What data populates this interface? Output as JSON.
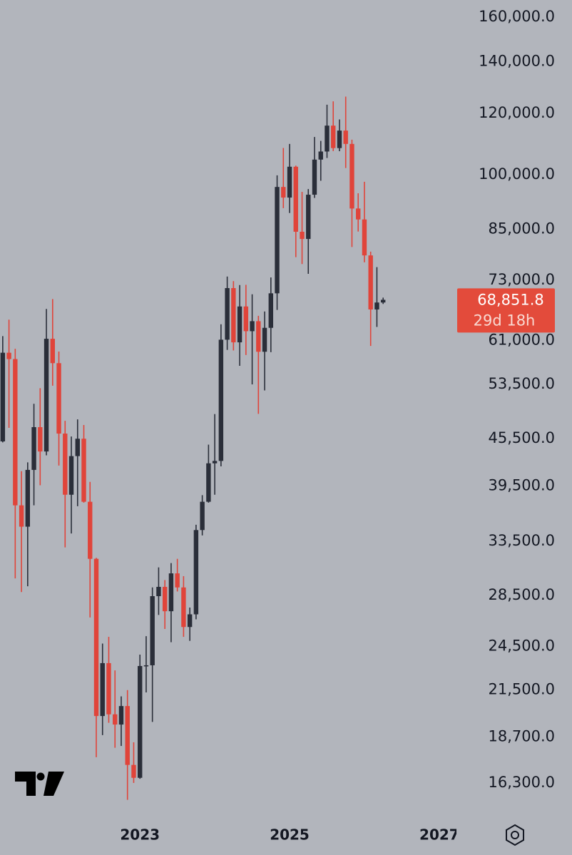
{
  "chart_data": {
    "type": "candlestick",
    "log_scale": true,
    "up_color": "#2a2e39",
    "down_color": "#e0443a",
    "x": [
      2021.1667,
      2021.25,
      2021.3333,
      2021.4167,
      2021.5,
      2021.5833,
      2021.6667,
      2021.75,
      2021.8333,
      2021.9167,
      2022,
      2022.0833,
      2022.1667,
      2022.25,
      2022.3333,
      2022.4167,
      2022.5,
      2022.5833,
      2022.6667,
      2022.75,
      2022.8333,
      2022.9167,
      2023,
      2023.0833,
      2023.1667,
      2023.25,
      2023.3333,
      2023.4167,
      2023.5,
      2023.5833,
      2023.6667,
      2023.75,
      2023.8333,
      2023.9167,
      2024,
      2024.0833,
      2024.1667,
      2024.25,
      2024.3333,
      2024.4167,
      2024.5,
      2024.5833,
      2024.6667,
      2024.75,
      2024.8333,
      2024.9167,
      2025,
      2025.0833,
      2025.1667,
      2025.25,
      2025.3333,
      2025.4167,
      2025.5,
      2025.5833,
      2025.6667,
      2025.75,
      2025.8333,
      2025.9167,
      2026,
      2026.0833,
      2026.1667,
      2026.25
    ],
    "open": [
      45135,
      58800,
      57700,
      37300,
      35000,
      41460,
      47100,
      43800,
      61300,
      57000,
      46200,
      38500,
      43200,
      45500,
      37700,
      31800,
      19900,
      23300,
      20000,
      19400,
      20500,
      17200,
      16550,
      23100,
      23150,
      28450,
      29250,
      27200,
      30450,
      29200,
      25950,
      26950,
      34650,
      37700,
      42280,
      42580,
      61130,
      71300,
      60650,
      67500,
      62700,
      64600,
      58970,
      63330,
      70200,
      96400,
      93400,
      102400,
      84350,
      82550,
      94200,
      104600,
      107150,
      115750,
      108250,
      114050,
      109600,
      90400,
      87500,
      78600,
      66900,
      68300
    ],
    "high": [
      61788,
      64900,
      59500,
      41300,
      42400,
      50500,
      52900,
      67000,
      69000,
      59000,
      47990,
      45800,
      48200,
      47400,
      40000,
      31900,
      24700,
      25200,
      22800,
      21100,
      21500,
      18400,
      23900,
      25250,
      29200,
      31000,
      29850,
      31400,
      31800,
      30200,
      27500,
      35200,
      38450,
      44700,
      48970,
      64000,
      73800,
      72800,
      71950,
      72000,
      70000,
      65650,
      66500,
      73600,
      99800,
      108300,
      109600,
      102750,
      95000,
      95800,
      111900,
      110600,
      123200,
      124450,
      117900,
      126200,
      111000,
      94600,
      97900,
      79500,
      75900,
      69300
    ],
    "low": [
      45000,
      47000,
      30000,
      28800,
      29300,
      37300,
      39600,
      43300,
      53300,
      42000,
      32900,
      34300,
      37200,
      37600,
      26700,
      17600,
      18800,
      19500,
      18100,
      18200,
      15500,
      16300,
      16500,
      21350,
      19550,
      26900,
      25800,
      24800,
      28850,
      25200,
      24900,
      26550,
      34100,
      37600,
      38500,
      41900,
      59300,
      59200,
      56550,
      58400,
      53500,
      49000,
      52550,
      58900,
      66800,
      90500,
      89200,
      78200,
      76600,
      74400,
      93300,
      98200,
      105100,
      107300,
      107250,
      102000,
      80600,
      84400,
      77000,
      60000,
      63500,
      68000
    ],
    "close": [
      58800,
      57700,
      37300,
      35000,
      41460,
      47100,
      43800,
      61300,
      57000,
      46200,
      38500,
      43200,
      45500,
      37700,
      31800,
      19900,
      23300,
      20000,
      19400,
      20500,
      17200,
      16550,
      23100,
      23150,
      28450,
      29250,
      27200,
      30450,
      29200,
      25950,
      26950,
      34650,
      37700,
      42280,
      42580,
      61130,
      71300,
      60650,
      67500,
      62700,
      64600,
      58970,
      63330,
      70200,
      96400,
      93400,
      102400,
      84350,
      82550,
      94200,
      104600,
      107150,
      115750,
      108250,
      114050,
      109600,
      90400,
      87500,
      78600,
      66900,
      68300,
      68851.8
    ],
    "xlim": [
      2021.13,
      2027.23
    ],
    "xticks": [
      2023,
      2025,
      2027
    ],
    "ylim": [
      15000,
      168000
    ],
    "yticks": [
      {
        "value": 16300,
        "label": "16,300.0"
      },
      {
        "value": 18700,
        "label": "18,700.0"
      },
      {
        "value": 21500,
        "label": "21,500.0"
      },
      {
        "value": 24500,
        "label": "24,500.0"
      },
      {
        "value": 28500,
        "label": "28,500.0"
      },
      {
        "value": 33500,
        "label": "33,500.0"
      },
      {
        "value": 39500,
        "label": "39,500.0"
      },
      {
        "value": 45500,
        "label": "45,500.0"
      },
      {
        "value": 53500,
        "label": "53,500.0"
      },
      {
        "value": 61000,
        "label": "61,000.0"
      },
      {
        "value": 73000,
        "label": "73,000.0"
      },
      {
        "value": 85000,
        "label": "85,000.0"
      },
      {
        "value": 100000,
        "label": "100,000.0"
      },
      {
        "value": 120000,
        "label": "120,000.0"
      },
      {
        "value": 140000,
        "label": "140,000.0"
      },
      {
        "value": 160000,
        "label": "160,000.0"
      }
    ],
    "last_price": {
      "value": 68851.8,
      "label": "68,851.8",
      "color": "#e34b3b"
    },
    "countdown": "29d 18h"
  }
}
